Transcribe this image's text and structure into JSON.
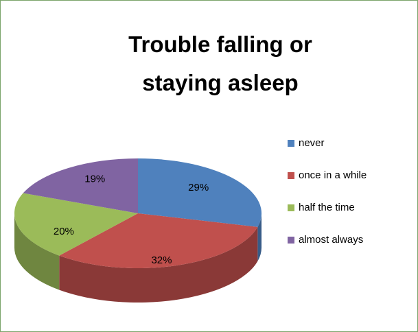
{
  "chart_data": {
    "type": "pie3d",
    "title": "Trouble falling or staying asleep",
    "categories": [
      "never",
      "once in a while",
      "half the time",
      "almost always"
    ],
    "values": [
      29,
      32,
      20,
      19
    ],
    "value_labels": [
      "29%",
      "32%",
      "20%",
      "19%"
    ],
    "colors": [
      "#4f81bd",
      "#c0504d",
      "#9bbb59",
      "#8064a2"
    ],
    "legend": "right"
  }
}
